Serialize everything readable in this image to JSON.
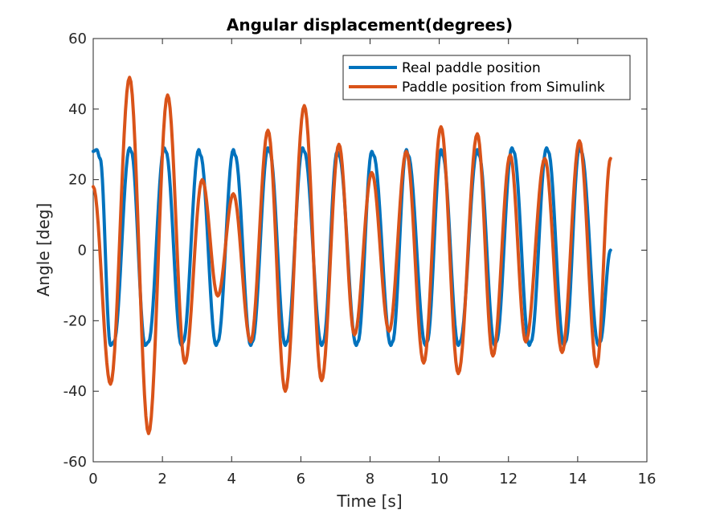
{
  "chart_data": {
    "type": "line",
    "title": "Angular displacement(degrees)",
    "xlabel": "Time [s]",
    "ylabel": "Angle [deg]",
    "xlim": [
      0,
      16
    ],
    "ylim": [
      -60,
      60
    ],
    "xticks": [
      "0",
      "2",
      "4",
      "6",
      "8",
      "10",
      "12",
      "14",
      "16"
    ],
    "yticks": [
      "-60",
      "-40",
      "-20",
      "0",
      "20",
      "40",
      "60"
    ],
    "grid": false,
    "legend_position": "top-right",
    "series": [
      {
        "name": "Real paddle position",
        "color": "#0072bd",
        "points": [
          [
            0.0,
            28
          ],
          [
            0.1,
            28.5
          ],
          [
            0.2,
            26
          ],
          [
            0.5,
            -27
          ],
          [
            0.6,
            -26
          ],
          [
            1.05,
            29
          ],
          [
            1.1,
            28
          ],
          [
            1.5,
            -27
          ],
          [
            1.6,
            -26
          ],
          [
            2.05,
            29
          ],
          [
            2.1,
            28
          ],
          [
            2.55,
            -27
          ],
          [
            2.6,
            -26
          ],
          [
            3.05,
            28.5
          ],
          [
            3.1,
            27
          ],
          [
            3.55,
            -27
          ],
          [
            3.6,
            -26
          ],
          [
            4.05,
            28.5
          ],
          [
            4.1,
            27
          ],
          [
            4.55,
            -27
          ],
          [
            4.6,
            -26
          ],
          [
            5.05,
            29
          ],
          [
            5.1,
            28
          ],
          [
            5.55,
            -27
          ],
          [
            5.6,
            -26
          ],
          [
            6.05,
            29
          ],
          [
            6.1,
            28
          ],
          [
            6.6,
            -27
          ],
          [
            6.65,
            -26
          ],
          [
            7.05,
            28
          ],
          [
            7.1,
            27
          ],
          [
            7.6,
            -27
          ],
          [
            7.65,
            -26
          ],
          [
            8.05,
            28
          ],
          [
            8.1,
            27
          ],
          [
            8.6,
            -27
          ],
          [
            8.65,
            -26
          ],
          [
            9.05,
            28.5
          ],
          [
            9.1,
            27
          ],
          [
            9.6,
            -27
          ],
          [
            9.65,
            -26
          ],
          [
            10.05,
            28.5
          ],
          [
            10.1,
            27
          ],
          [
            10.55,
            -27
          ],
          [
            10.6,
            -26
          ],
          [
            11.1,
            28.5
          ],
          [
            11.15,
            27
          ],
          [
            11.6,
            -27
          ],
          [
            11.65,
            -26
          ],
          [
            12.1,
            29
          ],
          [
            12.15,
            28
          ],
          [
            12.6,
            -27
          ],
          [
            12.65,
            -26
          ],
          [
            13.1,
            29
          ],
          [
            13.15,
            28
          ],
          [
            13.6,
            -27
          ],
          [
            13.65,
            -26
          ],
          [
            14.05,
            29
          ],
          [
            14.1,
            28
          ],
          [
            14.6,
            -27
          ],
          [
            14.65,
            -26
          ],
          [
            14.95,
            0
          ]
        ]
      },
      {
        "name": "Paddle position from Simulink",
        "color": "#d95319",
        "points": [
          [
            0.0,
            18
          ],
          [
            0.5,
            -38
          ],
          [
            1.05,
            49
          ],
          [
            1.6,
            -52
          ],
          [
            2.15,
            44
          ],
          [
            2.65,
            -32
          ],
          [
            3.15,
            20
          ],
          [
            3.6,
            -13
          ],
          [
            4.05,
            16
          ],
          [
            4.55,
            -26
          ],
          [
            5.05,
            34
          ],
          [
            5.55,
            -40
          ],
          [
            6.1,
            41
          ],
          [
            6.6,
            -37
          ],
          [
            7.1,
            30
          ],
          [
            7.55,
            -24
          ],
          [
            8.05,
            22
          ],
          [
            8.55,
            -23
          ],
          [
            9.05,
            28
          ],
          [
            9.55,
            -32
          ],
          [
            10.05,
            35
          ],
          [
            10.55,
            -35
          ],
          [
            11.1,
            33
          ],
          [
            11.55,
            -30
          ],
          [
            12.05,
            27
          ],
          [
            12.5,
            -26
          ],
          [
            13.05,
            26
          ],
          [
            13.55,
            -29
          ],
          [
            14.05,
            31
          ],
          [
            14.55,
            -33
          ],
          [
            14.95,
            26
          ]
        ]
      }
    ]
  }
}
